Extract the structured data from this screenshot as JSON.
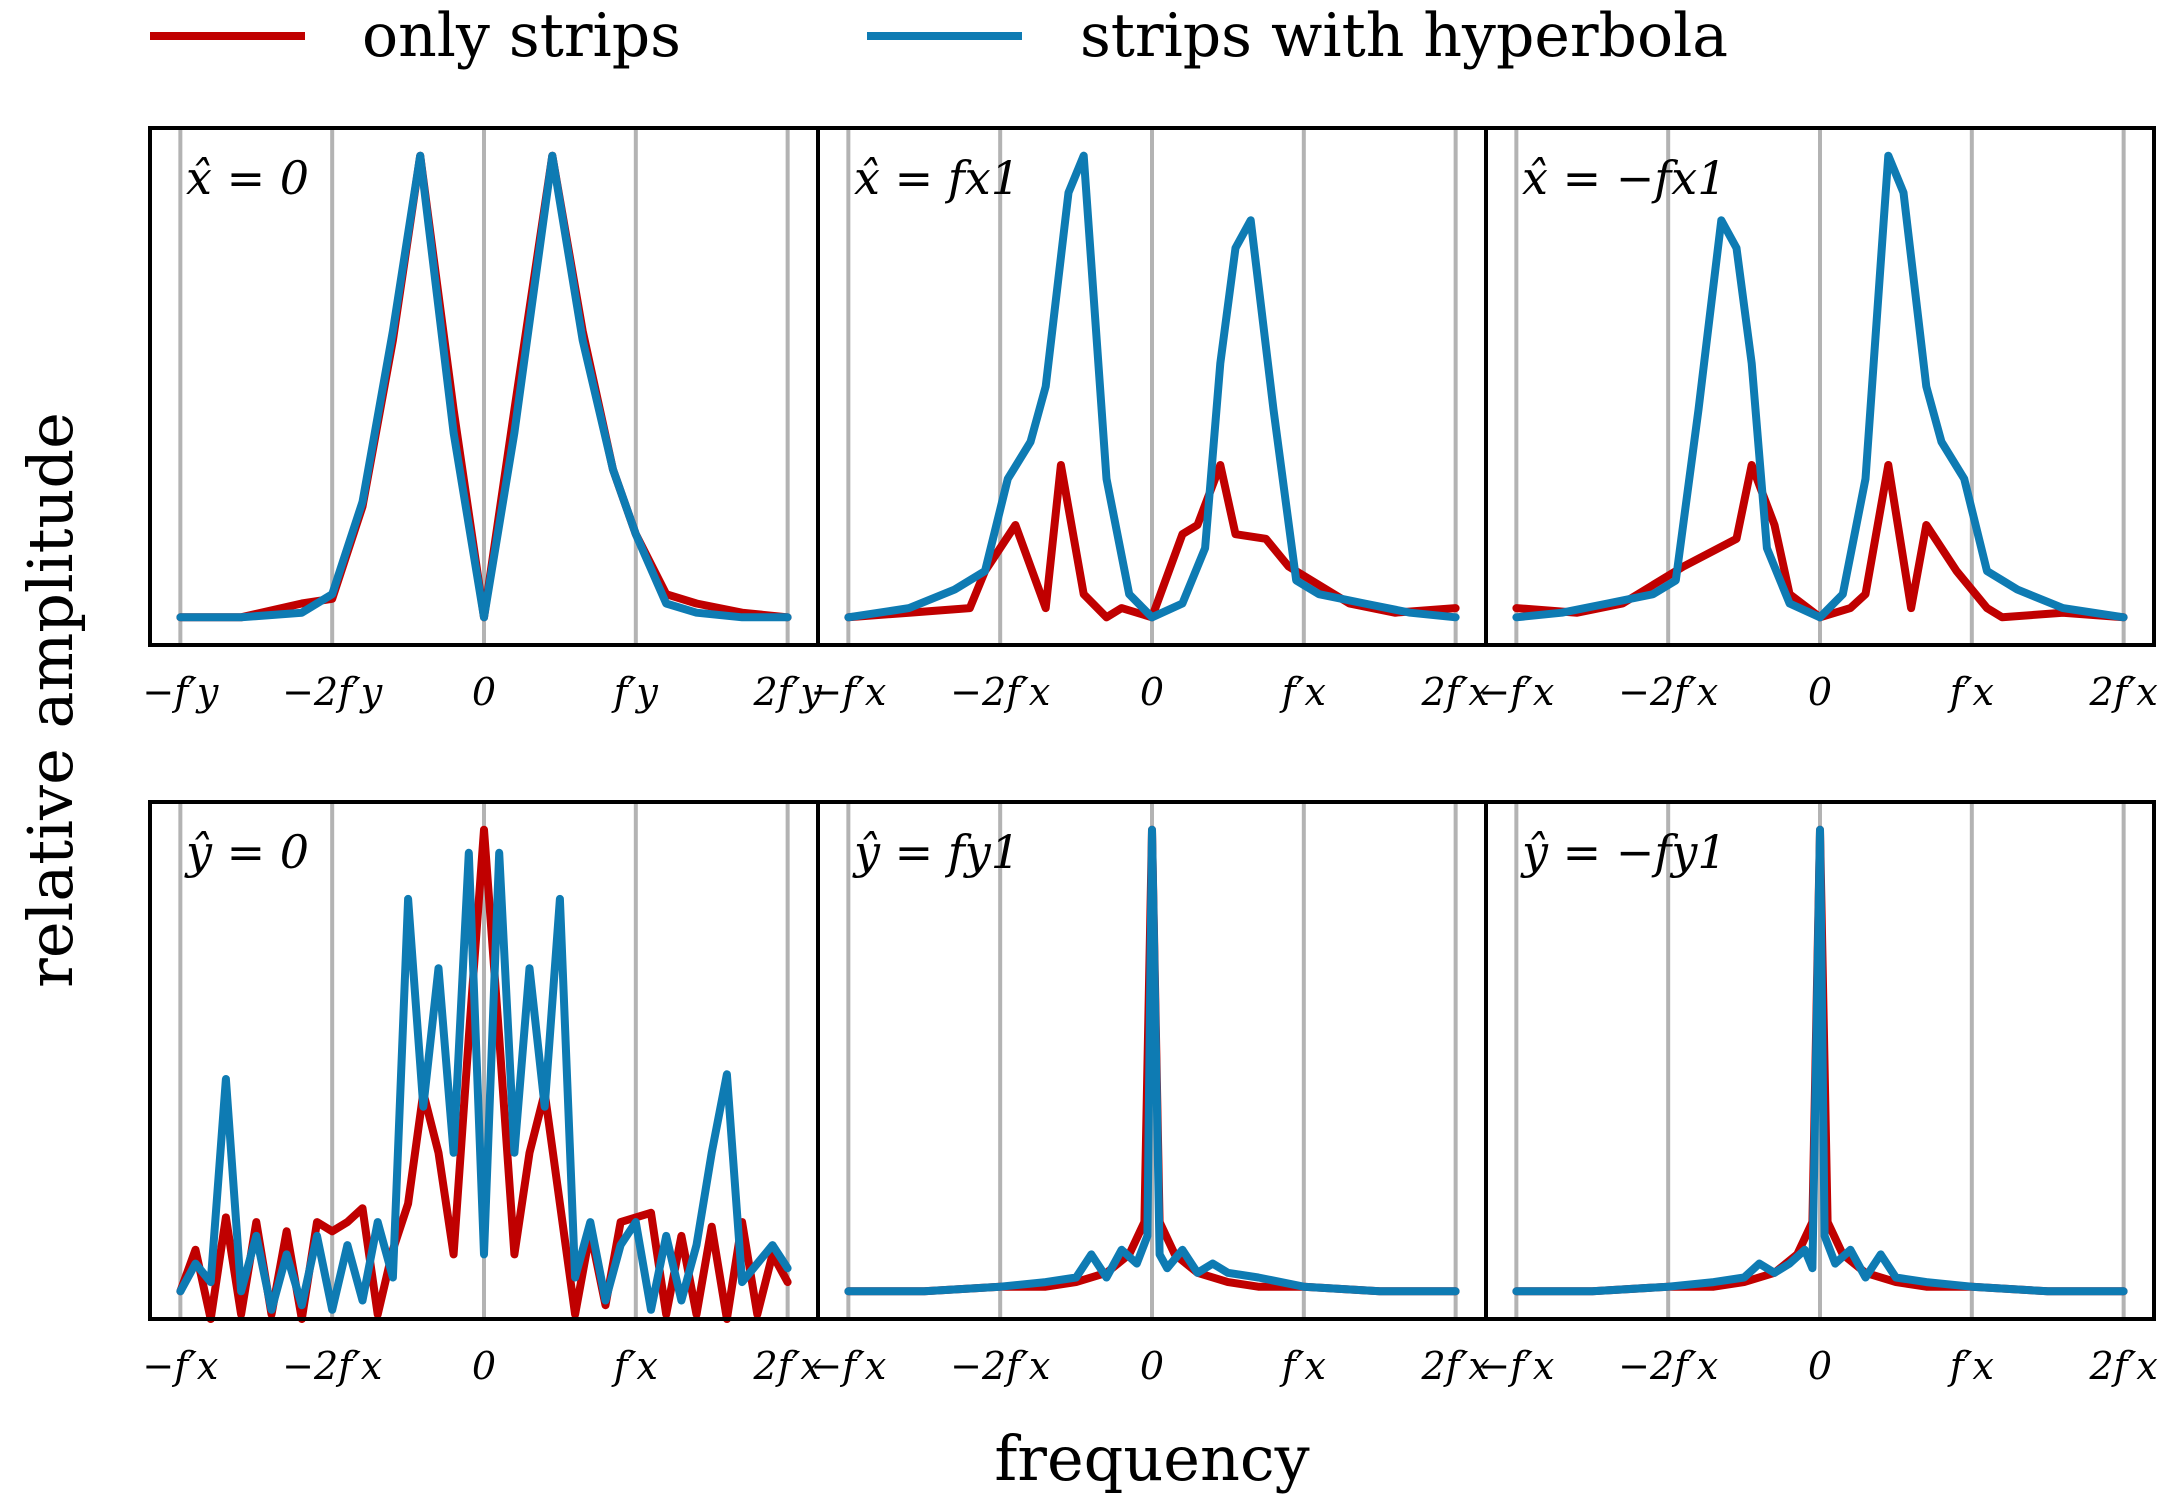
{
  "chart_data": {
    "type": "line",
    "xlabel": "frequency",
    "ylabel": "relative amplitude",
    "legend": {
      "placement": "top",
      "entries": [
        {
          "name": "only strips",
          "color": "#c00000"
        },
        {
          "name": "strips with hyperbola",
          "color": "#0e7bb3"
        }
      ]
    },
    "xlim": [
      -2.2,
      2.2
    ],
    "ylim": [
      -0.06,
      1.06
    ],
    "gridlines_x": [
      -2,
      -1,
      0,
      1,
      2
    ],
    "panels": [
      {
        "title": "x̂ = 0",
        "xticks": [
          "−f′y",
          "−2f′y",
          "0",
          "f′y",
          "2f′y"
        ],
        "series": [
          {
            "name": "only strips",
            "color": "#c00000",
            "x": [
              -2.0,
              -1.6,
              -1.2,
              -1.0,
              -0.8,
              -0.6,
              -0.42,
              -0.2,
              0.0,
              0.2,
              0.45,
              0.65,
              0.85,
              1.0,
              1.2,
              1.4,
              1.7,
              2.0
            ],
            "y": [
              0.0,
              0.0,
              0.03,
              0.04,
              0.24,
              0.6,
              1.0,
              0.45,
              0.0,
              0.45,
              1.0,
              0.62,
              0.32,
              0.18,
              0.05,
              0.03,
              0.01,
              0.0
            ]
          },
          {
            "name": "strips with hyperbola",
            "color": "#0e7bb3",
            "x": [
              -2.0,
              -1.6,
              -1.2,
              -1.0,
              -0.8,
              -0.6,
              -0.42,
              -0.2,
              0.0,
              0.2,
              0.45,
              0.65,
              0.85,
              1.0,
              1.2,
              1.4,
              1.7,
              2.0
            ],
            "y": [
              0.0,
              0.0,
              0.01,
              0.05,
              0.25,
              0.62,
              1.0,
              0.4,
              0.0,
              0.4,
              1.0,
              0.6,
              0.32,
              0.18,
              0.03,
              0.01,
              0.0,
              0.0
            ]
          }
        ]
      },
      {
        "title": "x̂ = fx1",
        "xticks": [
          "−f′x",
          "−2f′x",
          "0",
          "f′x",
          "2f′x"
        ],
        "series": [
          {
            "name": "only strips",
            "color": "#c00000",
            "x": [
              -2.0,
              -1.6,
              -1.2,
              -1.1,
              -0.9,
              -0.7,
              -0.6,
              -0.45,
              -0.3,
              -0.2,
              0.0,
              0.2,
              0.3,
              0.45,
              0.55,
              0.75,
              0.9,
              1.1,
              1.3,
              1.6,
              2.0
            ],
            "y": [
              0.0,
              0.01,
              0.02,
              0.1,
              0.2,
              0.02,
              0.33,
              0.05,
              0.0,
              0.02,
              0.0,
              0.18,
              0.2,
              0.33,
              0.18,
              0.17,
              0.11,
              0.07,
              0.03,
              0.01,
              0.02
            ]
          },
          {
            "name": "strips with hyperbola",
            "color": "#0e7bb3",
            "x": [
              -2.0,
              -1.6,
              -1.3,
              -1.1,
              -0.95,
              -0.8,
              -0.7,
              -0.55,
              -0.45,
              -0.3,
              -0.15,
              0.0,
              0.2,
              0.35,
              0.45,
              0.55,
              0.65,
              0.8,
              0.95,
              1.1,
              1.4,
              1.7,
              2.0
            ],
            "y": [
              0.0,
              0.02,
              0.06,
              0.1,
              0.3,
              0.38,
              0.5,
              0.92,
              1.0,
              0.3,
              0.05,
              0.0,
              0.03,
              0.15,
              0.55,
              0.8,
              0.86,
              0.45,
              0.08,
              0.05,
              0.03,
              0.01,
              0.0
            ]
          }
        ]
      },
      {
        "title": "x̂ = −fx1",
        "xticks": [
          "−f′x",
          "−2f′x",
          "0",
          "f′x",
          "2f′x"
        ],
        "series": [
          {
            "name": "only strips",
            "color": "#c00000",
            "x": [
              -2.0,
              -1.6,
              -1.3,
              -1.1,
              -0.9,
              -0.55,
              -0.45,
              -0.3,
              -0.2,
              0.0,
              0.2,
              0.3,
              0.45,
              0.6,
              0.7,
              0.9,
              1.1,
              1.2,
              1.6,
              2.0
            ],
            "y": [
              0.02,
              0.01,
              0.03,
              0.07,
              0.11,
              0.17,
              0.33,
              0.2,
              0.05,
              0.0,
              0.02,
              0.05,
              0.33,
              0.02,
              0.2,
              0.1,
              0.02,
              0.0,
              0.01,
              0.0
            ]
          },
          {
            "name": "strips with hyperbola",
            "color": "#0e7bb3",
            "x": [
              -2.0,
              -1.7,
              -1.4,
              -1.1,
              -0.95,
              -0.8,
              -0.65,
              -0.55,
              -0.45,
              -0.35,
              -0.2,
              0.0,
              0.15,
              0.3,
              0.45,
              0.55,
              0.7,
              0.8,
              0.95,
              1.1,
              1.3,
              1.6,
              2.0
            ],
            "y": [
              0.0,
              0.01,
              0.03,
              0.05,
              0.08,
              0.45,
              0.86,
              0.8,
              0.55,
              0.15,
              0.03,
              0.0,
              0.05,
              0.3,
              1.0,
              0.92,
              0.5,
              0.38,
              0.3,
              0.1,
              0.06,
              0.02,
              0.0
            ]
          }
        ]
      },
      {
        "title": "ŷ = 0",
        "xticks": [
          "−f′x",
          "−2f′x",
          "0",
          "f′x",
          "2f′x"
        ],
        "series": [
          {
            "name": "only strips",
            "color": "#c00000",
            "x": [
              -2.0,
              -1.9,
              -1.8,
              -1.7,
              -1.6,
              -1.5,
              -1.4,
              -1.3,
              -1.2,
              -1.1,
              -1.0,
              -0.9,
              -0.8,
              -0.7,
              -0.6,
              -0.5,
              -0.4,
              -0.3,
              -0.2,
              -0.1,
              0.0,
              0.1,
              0.2,
              0.3,
              0.4,
              0.5,
              0.6,
              0.7,
              0.8,
              0.9,
              1.0,
              1.1,
              1.2,
              1.3,
              1.4,
              1.5,
              1.6,
              1.7,
              1.8,
              1.9,
              2.0
            ],
            "y": [
              0.0,
              0.09,
              -0.06,
              0.16,
              -0.05,
              0.15,
              -0.05,
              0.13,
              -0.06,
              0.15,
              0.13,
              0.15,
              0.18,
              -0.05,
              0.09,
              0.19,
              0.43,
              0.3,
              0.08,
              0.55,
              1.0,
              0.55,
              0.08,
              0.3,
              0.43,
              0.19,
              -0.05,
              0.13,
              -0.03,
              0.15,
              0.16,
              0.17,
              -0.05,
              0.12,
              -0.05,
              0.14,
              -0.06,
              0.15,
              -0.05,
              0.08,
              0.02
            ]
          },
          {
            "name": "strips with hyperbola",
            "color": "#0e7bb3",
            "x": [
              -2.0,
              -1.9,
              -1.8,
              -1.7,
              -1.6,
              -1.5,
              -1.4,
              -1.3,
              -1.2,
              -1.1,
              -1.0,
              -0.9,
              -0.8,
              -0.7,
              -0.6,
              -0.5,
              -0.4,
              -0.3,
              -0.2,
              -0.1,
              0.0,
              0.1,
              0.2,
              0.3,
              0.4,
              0.5,
              0.6,
              0.7,
              0.8,
              0.9,
              1.0,
              1.1,
              1.2,
              1.3,
              1.4,
              1.5,
              1.6,
              1.7,
              1.8,
              1.9,
              2.0
            ],
            "y": [
              0.0,
              0.06,
              0.02,
              0.46,
              0.0,
              0.12,
              -0.04,
              0.08,
              -0.03,
              0.12,
              -0.04,
              0.1,
              -0.02,
              0.15,
              0.03,
              0.85,
              0.4,
              0.7,
              0.3,
              0.95,
              0.08,
              0.95,
              0.3,
              0.7,
              0.4,
              0.85,
              0.03,
              0.15,
              -0.02,
              0.1,
              0.15,
              -0.04,
              0.12,
              -0.02,
              0.1,
              0.3,
              0.47,
              0.02,
              0.06,
              0.1,
              0.05
            ]
          }
        ]
      },
      {
        "title": "ŷ = fy1",
        "xticks": [
          "−f′x",
          "−2f′x",
          "0",
          "f′x",
          "2f′x"
        ],
        "series": [
          {
            "name": "only strips",
            "color": "#c00000",
            "x": [
              -2.0,
              -1.5,
              -1.0,
              -0.7,
              -0.5,
              -0.3,
              -0.15,
              -0.05,
              0.0,
              0.05,
              0.15,
              0.3,
              0.5,
              0.7,
              1.0,
              1.5,
              2.0
            ],
            "y": [
              0.0,
              0.0,
              0.01,
              0.01,
              0.02,
              0.04,
              0.08,
              0.15,
              1.0,
              0.15,
              0.08,
              0.04,
              0.02,
              0.01,
              0.01,
              0.0,
              0.0
            ]
          },
          {
            "name": "strips with hyperbola",
            "color": "#0e7bb3",
            "x": [
              -2.0,
              -1.5,
              -1.0,
              -0.7,
              -0.5,
              -0.4,
              -0.3,
              -0.2,
              -0.1,
              -0.03,
              0.0,
              0.05,
              0.1,
              0.2,
              0.3,
              0.4,
              0.5,
              0.7,
              1.0,
              1.5,
              2.0
            ],
            "y": [
              0.0,
              0.0,
              0.01,
              0.02,
              0.03,
              0.08,
              0.03,
              0.09,
              0.06,
              0.12,
              1.0,
              0.08,
              0.05,
              0.09,
              0.04,
              0.06,
              0.04,
              0.03,
              0.01,
              0.0,
              0.0
            ]
          }
        ]
      },
      {
        "title": "ŷ = −fy1",
        "xticks": [
          "−f′x",
          "−2f′x",
          "0",
          "f′x",
          "2f′x"
        ],
        "series": [
          {
            "name": "only strips",
            "color": "#c00000",
            "x": [
              -2.0,
              -1.5,
              -1.0,
              -0.7,
              -0.5,
              -0.3,
              -0.15,
              -0.05,
              0.0,
              0.05,
              0.15,
              0.3,
              0.5,
              0.7,
              1.0,
              1.5,
              2.0
            ],
            "y": [
              0.0,
              0.0,
              0.01,
              0.01,
              0.02,
              0.04,
              0.08,
              0.15,
              1.0,
              0.15,
              0.08,
              0.04,
              0.02,
              0.01,
              0.01,
              0.0,
              0.0
            ]
          },
          {
            "name": "strips with hyperbola",
            "color": "#0e7bb3",
            "x": [
              -2.0,
              -1.5,
              -1.0,
              -0.7,
              -0.5,
              -0.4,
              -0.3,
              -0.2,
              -0.1,
              -0.05,
              0.0,
              0.03,
              0.1,
              0.2,
              0.3,
              0.4,
              0.5,
              0.7,
              1.0,
              1.5,
              2.0
            ],
            "y": [
              0.0,
              0.0,
              0.01,
              0.02,
              0.03,
              0.06,
              0.04,
              0.06,
              0.09,
              0.05,
              1.0,
              0.12,
              0.06,
              0.09,
              0.03,
              0.08,
              0.03,
              0.02,
              0.01,
              0.0,
              0.0
            ]
          }
        ]
      }
    ]
  }
}
